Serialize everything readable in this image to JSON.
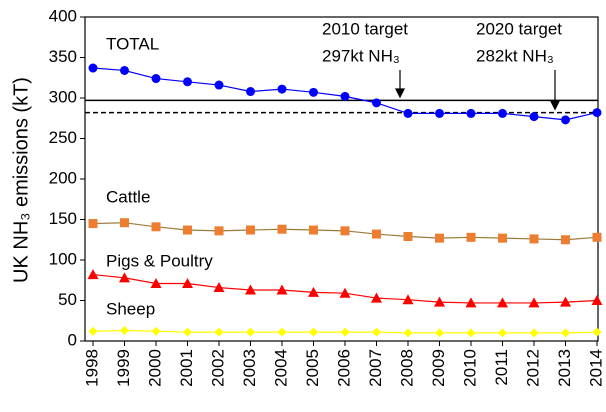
{
  "chart_data": {
    "type": "line",
    "ylabel": "UK NH₃ emissions (kT)",
    "categories": [
      "1998",
      "1999",
      "2000",
      "2001",
      "2002",
      "2003",
      "2004",
      "2005",
      "2006",
      "2007",
      "2008",
      "2009",
      "2010",
      "2011",
      "2012",
      "2013",
      "2014"
    ],
    "series": [
      {
        "name": "TOTAL",
        "color": "#0000ff",
        "line_color": "#0000ff",
        "marker": "circle",
        "values": [
          337,
          334,
          324,
          320,
          316,
          308,
          311,
          307,
          302,
          294,
          281,
          281,
          281,
          281,
          277,
          273,
          282
        ]
      },
      {
        "name": "Cattle",
        "color": "#ed7d31",
        "line_color": "#9c7b3c",
        "marker": "square",
        "values": [
          145,
          146,
          141,
          137,
          136,
          137,
          138,
          137,
          136,
          132,
          129,
          127,
          128,
          127,
          126,
          125,
          128
        ]
      },
      {
        "name": "Pigs & Poultry",
        "color": "#ff0000",
        "line_color": "#ff0000",
        "marker": "triangle",
        "values": [
          82,
          78,
          71,
          71,
          66,
          63,
          63,
          60,
          59,
          53,
          51,
          48,
          47,
          47,
          47,
          48,
          50
        ]
      },
      {
        "name": "Sheep",
        "color": "#ffff00",
        "line_color": "#ffff00",
        "marker": "diamond",
        "values": [
          12,
          13,
          12,
          11,
          11,
          11,
          11,
          11,
          11,
          11,
          10,
          10,
          10,
          10,
          10,
          10,
          11
        ]
      }
    ],
    "reference_lines": [
      {
        "value": 297,
        "style": "solid",
        "label": [
          "2010 target",
          "297kt NH₃"
        ]
      },
      {
        "value": 282,
        "style": "dashed",
        "label": [
          "2020 target",
          "282kt NH₃"
        ]
      }
    ],
    "ylim": [
      0,
      400
    ],
    "yticks": [
      0,
      50,
      100,
      150,
      200,
      250,
      300,
      350,
      400
    ]
  }
}
